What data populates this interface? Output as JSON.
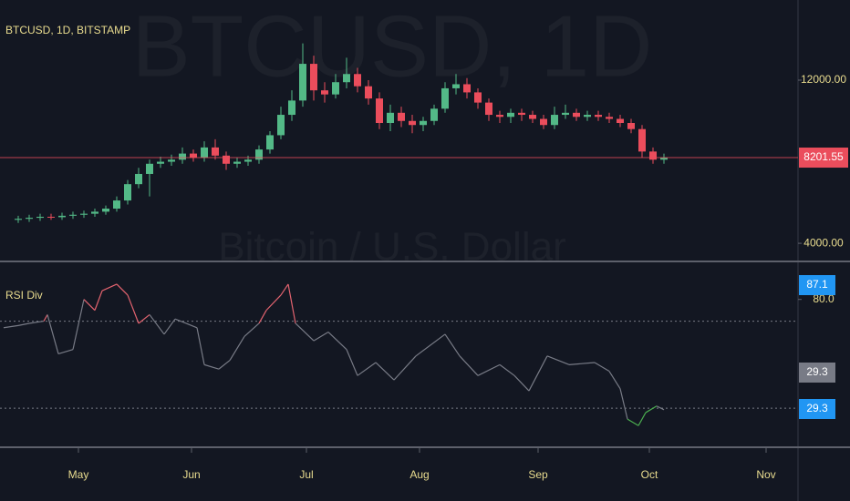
{
  "chart_data": [
    {
      "type": "candlestick",
      "title": "BTCUSD, 1D, BITSTAMP",
      "watermark": "BTCUSD, 1D",
      "watermark_subtitle": "Bitcoin / U.S. Dollar",
      "x": [
        4,
        7,
        10,
        13,
        16,
        19,
        22,
        25,
        28,
        31,
        34,
        37,
        40,
        43,
        46,
        49,
        52,
        55,
        58,
        61,
        64,
        67,
        70,
        73,
        76,
        79,
        82,
        85,
        88,
        91,
        94,
        97,
        100,
        103,
        106,
        109,
        112,
        115,
        118,
        121,
        124,
        127,
        130,
        133,
        136,
        139,
        142,
        145,
        148,
        151,
        154,
        157,
        160,
        163,
        166,
        169,
        172,
        175,
        178,
        181
      ],
      "open": [
        5150,
        5200,
        5250,
        5300,
        5280,
        5350,
        5400,
        5450,
        5550,
        5700,
        6100,
        6900,
        7400,
        7900,
        8000,
        8100,
        8400,
        8200,
        8700,
        8300,
        7900,
        8000,
        8100,
        8600,
        9300,
        10300,
        11000,
        12800,
        11500,
        11300,
        11900,
        12300,
        11700,
        11100,
        9900,
        10400,
        10000,
        9800,
        10000,
        10600,
        11600,
        11800,
        11400,
        10900,
        10300,
        10200,
        10400,
        10300,
        10100,
        9800,
        10300,
        10400,
        10200,
        10300,
        10200,
        10100,
        9900,
        9600,
        8500,
        8100
      ],
      "high": [
        5350,
        5400,
        5450,
        5450,
        5500,
        5550,
        5600,
        5700,
        5850,
        6300,
        7100,
        7700,
        8100,
        8250,
        8350,
        8700,
        8600,
        9000,
        9100,
        8500,
        8200,
        8300,
        8800,
        9500,
        10700,
        11500,
        13800,
        13200,
        11900,
        12300,
        13100,
        12600,
        12000,
        11400,
        10800,
        10700,
        10300,
        10200,
        10800,
        11900,
        12300,
        12100,
        11600,
        11100,
        10500,
        10600,
        10600,
        10500,
        10300,
        10700,
        10800,
        10600,
        10500,
        10500,
        10400,
        10300,
        10100,
        9800,
        8700,
        8400
      ],
      "low": [
        5000,
        5050,
        5100,
        5150,
        5150,
        5200,
        5250,
        5300,
        5400,
        5550,
        5900,
        6700,
        6300,
        7700,
        7800,
        7900,
        8000,
        8000,
        8100,
        7600,
        7700,
        7800,
        7900,
        8400,
        9100,
        10000,
        10700,
        11000,
        10900,
        11100,
        11600,
        11400,
        10800,
        9600,
        9500,
        9700,
        9400,
        9500,
        9800,
        10400,
        11300,
        11100,
        10600,
        10000,
        9900,
        9900,
        10000,
        9900,
        9600,
        9600,
        10100,
        10000,
        10000,
        10000,
        9900,
        9700,
        9400,
        8200,
        7900,
        7900
      ],
      "close": [
        5200,
        5250,
        5300,
        5280,
        5350,
        5400,
        5450,
        5550,
        5700,
        6100,
        6900,
        7400,
        7900,
        8000,
        8100,
        8400,
        8200,
        8700,
        8300,
        7900,
        8000,
        8100,
        8600,
        9300,
        10300,
        11000,
        12800,
        11500,
        11300,
        11900,
        12300,
        11700,
        11100,
        9900,
        10400,
        10000,
        9800,
        10000,
        10600,
        11600,
        11800,
        11400,
        10900,
        10300,
        10200,
        10400,
        10300,
        10100,
        9800,
        10300,
        10400,
        10200,
        10300,
        10200,
        10100,
        9900,
        9600,
        8500,
        8100,
        8200
      ],
      "up_color": "#53b987",
      "down_color": "#eb4d5c",
      "xlim": [
        -1,
        217.75
      ],
      "xticks": [
        {
          "value": 20.5,
          "label": "May"
        },
        {
          "value": 51.5,
          "label": "Jun"
        },
        {
          "value": 83,
          "label": "Jul"
        },
        {
          "value": 114,
          "label": "Aug"
        },
        {
          "value": 146.5,
          "label": "Sep"
        },
        {
          "value": 177,
          "label": "Oct"
        },
        {
          "value": 209,
          "label": "Nov"
        }
      ],
      "ylim": [
        3200,
        15930
      ],
      "yticks": [
        {
          "value": 4000,
          "label": "4000.00"
        },
        {
          "value": 12000,
          "label": "12000.00"
        }
      ],
      "price_line": {
        "value": 8201.55,
        "color": "#eb4d5c"
      }
    },
    {
      "type": "line",
      "title": "RSI Div",
      "x": [
        0,
        4,
        7,
        11,
        12,
        15,
        19,
        22,
        25,
        27,
        31,
        34,
        37,
        40,
        44,
        47,
        50,
        53,
        55,
        59,
        62,
        66,
        70,
        72,
        76,
        78,
        80,
        85,
        89,
        94,
        97,
        102,
        107,
        113,
        121,
        125,
        130,
        136,
        140,
        144,
        149,
        155,
        162,
        166,
        169,
        171,
        174,
        176,
        179,
        181
      ],
      "values": [
        67,
        68,
        69,
        70,
        73,
        55,
        57,
        80,
        75,
        84,
        87,
        82,
        69,
        73,
        64,
        71,
        69,
        67,
        50,
        48,
        52,
        63,
        69,
        75,
        82,
        87,
        69,
        61,
        65,
        57,
        45,
        51,
        43,
        54,
        64,
        54,
        45,
        50,
        45,
        38,
        54,
        50,
        51,
        47,
        39,
        25,
        22,
        28,
        31,
        29.3
      ],
      "color": "#787b86",
      "upper_color": "#e2636f",
      "lower_color": "#4caf50",
      "levels": [
        70,
        30
      ],
      "xlim": [
        -1,
        217.75
      ],
      "ylim": [
        12.9,
        96.2
      ],
      "yticks": [
        {
          "value": 80,
          "label": "80.0"
        }
      ],
      "marker_labels": [
        {
          "value": 87.1,
          "color": "#2196f3"
        },
        {
          "value": 29.3,
          "color": "#787b86"
        },
        {
          "value": 29.3,
          "color": "#2196f3"
        }
      ]
    }
  ]
}
